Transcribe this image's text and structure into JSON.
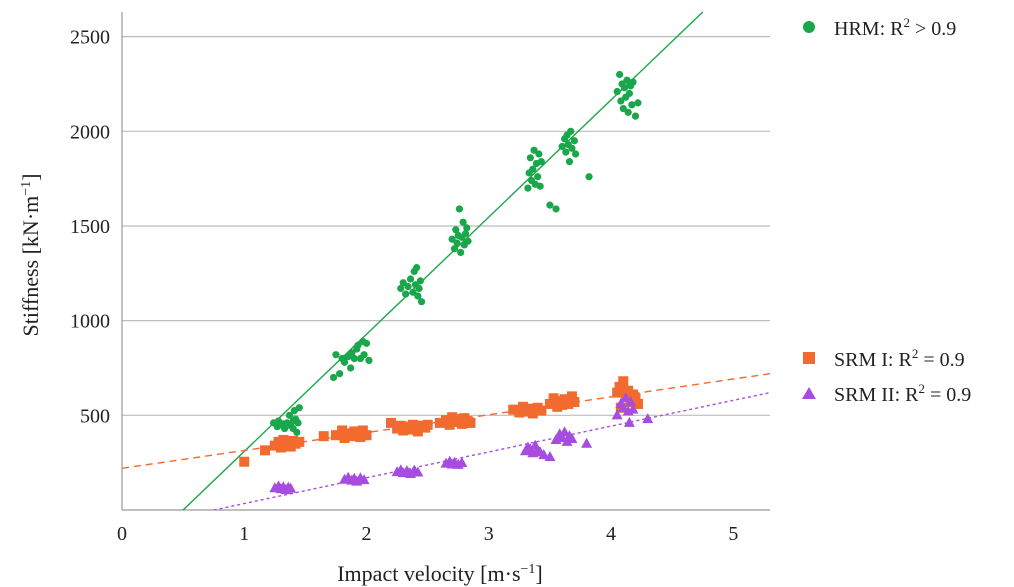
{
  "chart_data": {
    "type": "scatter",
    "xlabel": "Impact velocity [m·s⁻¹]",
    "xlabel_parts": {
      "prefix": "Impact velocity [m·s",
      "sup": "−1",
      "suffix": "]"
    },
    "ylabel": "Stiffness [kN·m⁻¹]",
    "ylabel_parts": {
      "prefix": "Stiffness [kN·m",
      "sup": "−1",
      "suffix": "]"
    },
    "xlim": [
      0,
      5.3
    ],
    "ylim": [
      0,
      2630
    ],
    "xticks": [
      "0",
      "1",
      "2",
      "3",
      "4",
      "5"
    ],
    "yticks": [
      "500",
      "1000",
      "1500",
      "2000",
      "2500"
    ],
    "grid": "horizontal",
    "legend_placement": "right",
    "series": [
      {
        "name": "HRM: R² > 0.9",
        "legend_parts": {
          "prefix": "HRM: R",
          "sup": "2",
          "suffix": " > 0.9"
        },
        "marker": "circle",
        "color": "#1aa64a",
        "trendline": {
          "from": [
            0.5,
            0
          ],
          "to": [
            4.75,
            2630
          ],
          "style": "solid"
        },
        "points": [
          [
            1.24,
            460
          ],
          [
            1.27,
            440
          ],
          [
            1.28,
            470
          ],
          [
            1.3,
            450
          ],
          [
            1.32,
            455
          ],
          [
            1.33,
            430
          ],
          [
            1.35,
            460
          ],
          [
            1.37,
            500
          ],
          [
            1.38,
            445
          ],
          [
            1.4,
            470
          ],
          [
            1.4,
            430
          ],
          [
            1.41,
            525
          ],
          [
            1.42,
            480
          ],
          [
            1.43,
            410
          ],
          [
            1.44,
            460
          ],
          [
            1.45,
            540
          ],
          [
            1.73,
            700
          ],
          [
            1.75,
            820
          ],
          [
            1.78,
            720
          ],
          [
            1.8,
            800
          ],
          [
            1.82,
            780
          ],
          [
            1.85,
            810
          ],
          [
            1.87,
            750
          ],
          [
            1.88,
            830
          ],
          [
            1.9,
            800
          ],
          [
            1.92,
            850
          ],
          [
            1.93,
            870
          ],
          [
            1.95,
            800
          ],
          [
            1.97,
            890
          ],
          [
            1.98,
            820
          ],
          [
            2.0,
            880
          ],
          [
            2.02,
            790
          ],
          [
            2.28,
            1170
          ],
          [
            2.3,
            1200
          ],
          [
            2.32,
            1140
          ],
          [
            2.34,
            1180
          ],
          [
            2.36,
            1220
          ],
          [
            2.38,
            1150
          ],
          [
            2.39,
            1260
          ],
          [
            2.4,
            1190
          ],
          [
            2.41,
            1280
          ],
          [
            2.42,
            1130
          ],
          [
            2.43,
            1170
          ],
          [
            2.44,
            1210
          ],
          [
            2.45,
            1100
          ],
          [
            2.7,
            1430
          ],
          [
            2.72,
            1380
          ],
          [
            2.73,
            1480
          ],
          [
            2.74,
            1410
          ],
          [
            2.75,
            1450
          ],
          [
            2.76,
            1590
          ],
          [
            2.77,
            1360
          ],
          [
            2.78,
            1440
          ],
          [
            2.79,
            1520
          ],
          [
            2.8,
            1400
          ],
          [
            2.81,
            1460
          ],
          [
            2.82,
            1490
          ],
          [
            2.83,
            1420
          ],
          [
            3.32,
            1700
          ],
          [
            3.33,
            1780
          ],
          [
            3.34,
            1860
          ],
          [
            3.35,
            1740
          ],
          [
            3.36,
            1800
          ],
          [
            3.37,
            1900
          ],
          [
            3.38,
            1720
          ],
          [
            3.39,
            1830
          ],
          [
            3.4,
            1760
          ],
          [
            3.41,
            1880
          ],
          [
            3.42,
            1710
          ],
          [
            3.43,
            1840
          ],
          [
            3.5,
            1610
          ],
          [
            3.55,
            1590
          ],
          [
            3.6,
            1920
          ],
          [
            3.62,
            1960
          ],
          [
            3.63,
            1890
          ],
          [
            3.64,
            1980
          ],
          [
            3.65,
            1930
          ],
          [
            3.66,
            1840
          ],
          [
            3.67,
            2000
          ],
          [
            3.68,
            1910
          ],
          [
            3.7,
            1950
          ],
          [
            3.71,
            1880
          ],
          [
            3.82,
            1760
          ],
          [
            4.05,
            2210
          ],
          [
            4.07,
            2300
          ],
          [
            4.08,
            2160
          ],
          [
            4.09,
            2250
          ],
          [
            4.1,
            2120
          ],
          [
            4.11,
            2230
          ],
          [
            4.12,
            2180
          ],
          [
            4.13,
            2270
          ],
          [
            4.14,
            2100
          ],
          [
            4.15,
            2200
          ],
          [
            4.16,
            2240
          ],
          [
            4.17,
            2140
          ],
          [
            4.18,
            2260
          ],
          [
            4.2,
            2080
          ],
          [
            4.22,
            2150
          ]
        ]
      },
      {
        "name": "SRM I: R² = 0.9",
        "legend_parts": {
          "prefix": "SRM I: R",
          "sup": "2",
          "suffix": " = 0.9"
        },
        "marker": "square",
        "color": "#f26a2e",
        "trendline": {
          "from": [
            0,
            220
          ],
          "to": [
            5.3,
            720
          ],
          "style": "dashed"
        },
        "points": [
          [
            1.0,
            255
          ],
          [
            1.17,
            315
          ],
          [
            1.25,
            340
          ],
          [
            1.28,
            360
          ],
          [
            1.3,
            330
          ],
          [
            1.32,
            370
          ],
          [
            1.34,
            345
          ],
          [
            1.36,
            355
          ],
          [
            1.38,
            335
          ],
          [
            1.4,
            365
          ],
          [
            1.42,
            350
          ],
          [
            1.45,
            360
          ],
          [
            1.65,
            390
          ],
          [
            1.75,
            395
          ],
          [
            1.8,
            420
          ],
          [
            1.82,
            380
          ],
          [
            1.85,
            405
          ],
          [
            1.87,
            390
          ],
          [
            1.9,
            415
          ],
          [
            1.92,
            400
          ],
          [
            1.95,
            385
          ],
          [
            1.97,
            420
          ],
          [
            2.0,
            395
          ],
          [
            2.2,
            460
          ],
          [
            2.25,
            430
          ],
          [
            2.28,
            445
          ],
          [
            2.3,
            420
          ],
          [
            2.32,
            440
          ],
          [
            2.35,
            425
          ],
          [
            2.38,
            450
          ],
          [
            2.4,
            430
          ],
          [
            2.42,
            415
          ],
          [
            2.45,
            445
          ],
          [
            2.48,
            435
          ],
          [
            2.5,
            450
          ],
          [
            2.6,
            460
          ],
          [
            2.65,
            475
          ],
          [
            2.68,
            450
          ],
          [
            2.7,
            490
          ],
          [
            2.72,
            465
          ],
          [
            2.75,
            480
          ],
          [
            2.78,
            455
          ],
          [
            2.8,
            485
          ],
          [
            2.82,
            470
          ],
          [
            2.85,
            460
          ],
          [
            3.2,
            530
          ],
          [
            3.25,
            515
          ],
          [
            3.28,
            545
          ],
          [
            3.3,
            520
          ],
          [
            3.33,
            535
          ],
          [
            3.36,
            510
          ],
          [
            3.4,
            540
          ],
          [
            3.43,
            525
          ],
          [
            3.5,
            560
          ],
          [
            3.53,
            590
          ],
          [
            3.56,
            545
          ],
          [
            3.58,
            575
          ],
          [
            3.6,
            555
          ],
          [
            3.62,
            585
          ],
          [
            3.65,
            560
          ],
          [
            3.68,
            600
          ],
          [
            3.7,
            570
          ],
          [
            4.05,
            620
          ],
          [
            4.07,
            650
          ],
          [
            4.08,
            540
          ],
          [
            4.1,
            680
          ],
          [
            4.12,
            600
          ],
          [
            4.14,
            630
          ],
          [
            4.16,
            570
          ],
          [
            4.18,
            610
          ],
          [
            4.2,
            590
          ],
          [
            4.22,
            560
          ]
        ]
      },
      {
        "name": "SRM II: R² = 0.9",
        "legend_parts": {
          "prefix": "SRM II: R",
          "sup": "2",
          "suffix": " = 0.9"
        },
        "marker": "triangle",
        "color": "#a64de0",
        "trendline": {
          "from": [
            0.75,
            0
          ],
          "to": [
            5.3,
            620
          ],
          "style": "dotted"
        },
        "points": [
          [
            1.25,
            115
          ],
          [
            1.28,
            125
          ],
          [
            1.3,
            110
          ],
          [
            1.32,
            120
          ],
          [
            1.34,
            105
          ],
          [
            1.36,
            118
          ],
          [
            1.38,
            112
          ],
          [
            1.82,
            160
          ],
          [
            1.85,
            170
          ],
          [
            1.88,
            155
          ],
          [
            1.9,
            165
          ],
          [
            1.92,
            150
          ],
          [
            1.95,
            168
          ],
          [
            1.98,
            158
          ],
          [
            2.25,
            200
          ],
          [
            2.28,
            210
          ],
          [
            2.3,
            195
          ],
          [
            2.33,
            205
          ],
          [
            2.36,
            190
          ],
          [
            2.39,
            208
          ],
          [
            2.42,
            198
          ],
          [
            2.65,
            245
          ],
          [
            2.68,
            255
          ],
          [
            2.7,
            240
          ],
          [
            2.72,
            250
          ],
          [
            2.75,
            238
          ],
          [
            2.78,
            248
          ],
          [
            3.3,
            310
          ],
          [
            3.32,
            330
          ],
          [
            3.34,
            320
          ],
          [
            3.36,
            300
          ],
          [
            3.38,
            340
          ],
          [
            3.4,
            315
          ],
          [
            3.42,
            305
          ],
          [
            3.45,
            290
          ],
          [
            3.5,
            280
          ],
          [
            3.55,
            370
          ],
          [
            3.58,
            400
          ],
          [
            3.6,
            380
          ],
          [
            3.62,
            410
          ],
          [
            3.64,
            360
          ],
          [
            3.66,
            390
          ],
          [
            3.68,
            375
          ],
          [
            3.8,
            350
          ],
          [
            4.05,
            500
          ],
          [
            4.08,
            560
          ],
          [
            4.1,
            540
          ],
          [
            4.12,
            590
          ],
          [
            4.14,
            520
          ],
          [
            4.15,
            460
          ],
          [
            4.16,
            570
          ],
          [
            4.18,
            530
          ],
          [
            4.3,
            480
          ]
        ]
      }
    ]
  }
}
